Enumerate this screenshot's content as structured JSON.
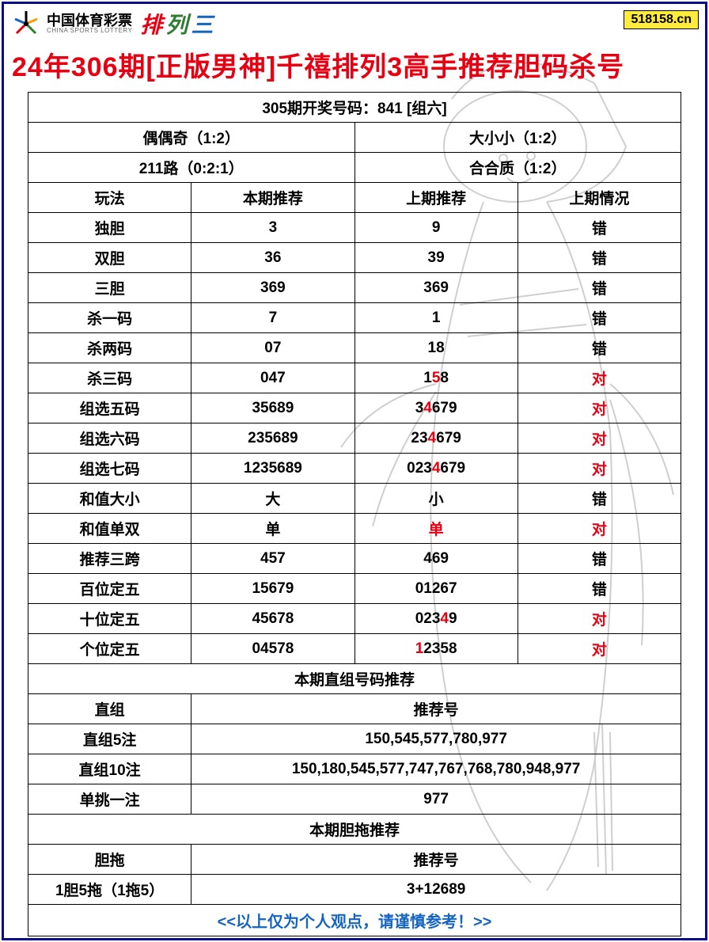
{
  "header": {
    "logo_cn": "中国体育彩票",
    "logo_en": "CHINA SPORTS LOTTERY",
    "pl3_chars": [
      "排",
      "列",
      "三"
    ],
    "badge": "518158.cn"
  },
  "title": "24年306期[正版男神]千禧排列3高手推荐胆码杀号",
  "table": {
    "result_header": "305期开奖号码：841 [组六]",
    "meta_rows": [
      [
        "偶偶奇（1:2）",
        "大小小（1:2）"
      ],
      [
        "211路（0:2:1）",
        "合合质（1:2）"
      ]
    ],
    "columns": [
      "玩法",
      "本期推荐",
      "上期推荐",
      "上期情况"
    ],
    "rows": [
      {
        "play": "独胆",
        "current": "3",
        "prev": [
          {
            "t": "9"
          }
        ],
        "status": "错",
        "status_red": false
      },
      {
        "play": "双胆",
        "current": "36",
        "prev": [
          {
            "t": "39"
          }
        ],
        "status": "错",
        "status_red": false
      },
      {
        "play": "三胆",
        "current": "369",
        "prev": [
          {
            "t": "369"
          }
        ],
        "status": "错",
        "status_red": false
      },
      {
        "play": "杀一码",
        "current": "7",
        "prev": [
          {
            "t": "1"
          }
        ],
        "status": "错",
        "status_red": false
      },
      {
        "play": "杀两码",
        "current": "07",
        "prev": [
          {
            "t": "18"
          }
        ],
        "status": "错",
        "status_red": false
      },
      {
        "play": "杀三码",
        "current": "047",
        "prev": [
          {
            "t": "1"
          },
          {
            "t": "5",
            "red": true
          },
          {
            "t": "8"
          }
        ],
        "status": "对",
        "status_red": true
      },
      {
        "play": "组选五码",
        "current": "35689",
        "prev": [
          {
            "t": "3"
          },
          {
            "t": "4",
            "red": true
          },
          {
            "t": "679"
          }
        ],
        "status": "对",
        "status_red": true
      },
      {
        "play": "组选六码",
        "current": "235689",
        "prev": [
          {
            "t": "23"
          },
          {
            "t": "4",
            "red": true
          },
          {
            "t": "679"
          }
        ],
        "status": "对",
        "status_red": true
      },
      {
        "play": "组选七码",
        "current": "1235689",
        "prev": [
          {
            "t": "023"
          },
          {
            "t": "4",
            "red": true
          },
          {
            "t": "679"
          }
        ],
        "status": "对",
        "status_red": true
      },
      {
        "play": "和值大小",
        "current": "大",
        "prev": [
          {
            "t": "小"
          }
        ],
        "status": "错",
        "status_red": false
      },
      {
        "play": "和值单双",
        "current": "单",
        "prev": [
          {
            "t": "单",
            "red": true
          }
        ],
        "status": "对",
        "status_red": true
      },
      {
        "play": "推荐三跨",
        "current": "457",
        "prev": [
          {
            "t": "469"
          }
        ],
        "status": "错",
        "status_red": false
      },
      {
        "play": "百位定五",
        "current": "15679",
        "prev": [
          {
            "t": "01267"
          }
        ],
        "status": "错",
        "status_red": false
      },
      {
        "play": "十位定五",
        "current": "45678",
        "prev": [
          {
            "t": "023"
          },
          {
            "t": "4",
            "red": true
          },
          {
            "t": "9"
          }
        ],
        "status": "对",
        "status_red": true
      },
      {
        "play": "个位定五",
        "current": "04578",
        "prev": [
          {
            "t": "1",
            "red": true
          },
          {
            "t": "2358"
          }
        ],
        "status": "对",
        "status_red": true
      }
    ],
    "section2_header": "本期直组号码推荐",
    "section2_cols": [
      "直组",
      "推荐号"
    ],
    "section2_rows": [
      [
        "直组5注",
        "150,545,577,780,977"
      ],
      [
        "直组10注",
        "150,180,545,577,747,767,768,780,948,977"
      ],
      [
        "单挑一注",
        "977"
      ]
    ],
    "section3_header": "本期胆拖推荐",
    "section3_cols": [
      "胆拖",
      "推荐号"
    ],
    "section3_rows": [
      [
        "1胆5拖（1拖5）",
        "3+12689"
      ]
    ],
    "footer": "<<以上仅为个人观点，请谨慎参考！>>"
  },
  "styling": {
    "border_color": "#0a0a8a",
    "title_color": "#e60012",
    "highlight_color": "#e60012",
    "footer_color": "#1565c0",
    "badge_bg": "#ffeb3b",
    "cell_border": "#000000",
    "font_size_title": 34,
    "font_size_cell": 19
  }
}
